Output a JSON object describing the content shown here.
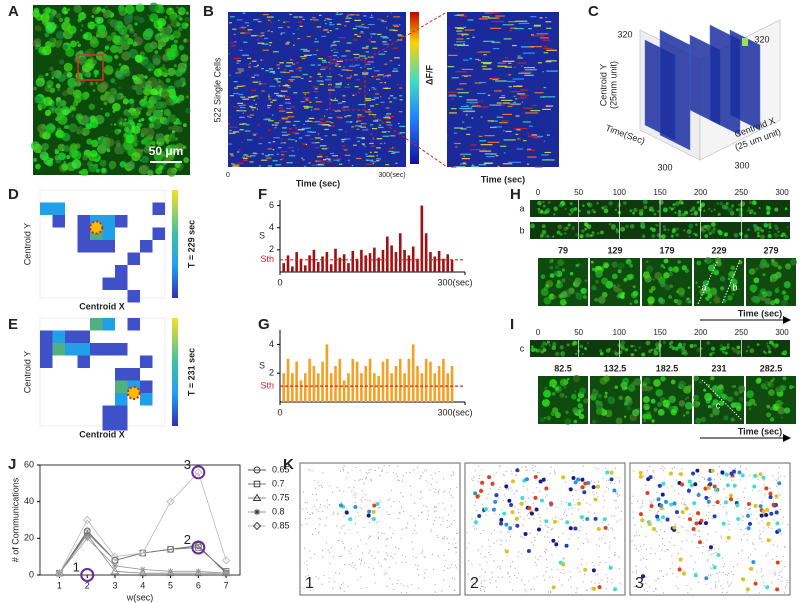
{
  "panel_labels": [
    "A",
    "B",
    "C",
    "D",
    "E",
    "F",
    "G",
    "H",
    "I",
    "J",
    "K"
  ],
  "A": {
    "scale_bar": "50 μm"
  },
  "B": {
    "y_label": "522 Single Cells",
    "x_start": "0",
    "x_end": "300(sec)",
    "x_label": "Time (sec)",
    "colorbar_label": "ΔF/F",
    "zoom_x_label": "Time (sec)"
  },
  "C": {
    "y_label": [
      "Centroid Y",
      "(25mm unit)"
    ],
    "y_max": "320",
    "x_max": "320",
    "time_label": "Time(Sec)",
    "time_max": "300",
    "x_label": [
      "Centroid X",
      "(25 um unit)"
    ],
    "x_end": "300"
  },
  "D": {
    "y_label": "Centroid Y",
    "x_label": "Centroid X",
    "time_label": "T = 229 sec"
  },
  "E": {
    "y_label": "Centroid Y",
    "x_label": "Centroid X",
    "time_label": "T = 231 sec"
  },
  "H": {
    "ticks": [
      0,
      50,
      100,
      150,
      200,
      250,
      300
    ],
    "rows": [
      "a",
      "b"
    ],
    "frames": [
      79,
      129,
      179,
      229,
      279
    ],
    "lines": [
      "a",
      "b"
    ],
    "time_label": "Time (sec)"
  },
  "I": {
    "ticks": [
      0,
      50,
      100,
      150,
      200,
      250,
      300
    ],
    "rows": [
      "c"
    ],
    "frames": [
      82.5,
      132.5,
      182.5,
      231,
      282.5
    ],
    "lines": [
      "c"
    ],
    "time_label": "Time (sec)"
  },
  "K": {
    "subpanels": [
      "1",
      "2",
      "3"
    ]
  },
  "chart_data": [
    {
      "type": "bar",
      "y_label": "S",
      "color": "#a01010",
      "x": [
        6,
        13,
        20,
        27,
        34,
        41,
        48,
        55,
        62,
        69,
        76,
        83,
        90,
        97,
        104,
        111,
        118,
        125,
        132,
        139,
        146,
        153,
        160,
        167,
        174,
        181,
        188,
        195,
        202,
        209,
        216,
        223,
        230,
        237,
        244,
        251,
        258,
        265,
        272,
        279
      ],
      "values": [
        0.8,
        1.5,
        0.5,
        1.8,
        1.2,
        0.6,
        1.5,
        2.0,
        0.9,
        1.4,
        1.8,
        0.7,
        2.1,
        1.3,
        1.6,
        0.8,
        1.9,
        1.2,
        2.0,
        1.5,
        1.7,
        2.2,
        1.3,
        2.0,
        3.2,
        2.4,
        1.8,
        3.5,
        2.0,
        1.5,
        2.3,
        1.2,
        6.0,
        3.5,
        1.8,
        1.4,
        1.9,
        1.2,
        1.6,
        1.1
      ],
      "xlim": [
        0,
        300
      ],
      "xticks": [
        0,
        {
          "value": 300,
          "label": "300(sec)"
        }
      ],
      "ylim": [
        0,
        6.5
      ],
      "yticks": [
        2,
        4,
        6
      ],
      "threshold": 1.1,
      "threshold_label": "Sth",
      "threshold_color": "#e02020"
    },
    {
      "type": "bar",
      "y_label": "S",
      "color": "#f5a020",
      "x": [
        6,
        13,
        20,
        27,
        34,
        41,
        48,
        55,
        62,
        69,
        76,
        83,
        90,
        97,
        104,
        111,
        118,
        125,
        132,
        139,
        146,
        153,
        160,
        167,
        174,
        181,
        188,
        195,
        202,
        209,
        216,
        223,
        230,
        237,
        244,
        251,
        258,
        265,
        272,
        279
      ],
      "values": [
        2.0,
        3.0,
        2.0,
        2.8,
        1.5,
        2.0,
        3.0,
        2.5,
        2.0,
        2.8,
        4.0,
        2.0,
        2.5,
        3.0,
        1.5,
        2.0,
        3.0,
        2.8,
        2.0,
        2.5,
        3.0,
        2.0,
        1.8,
        2.8,
        3.0,
        2.0,
        2.5,
        3.0,
        2.0,
        3.0,
        4.0,
        2.5,
        2.0,
        3.0,
        2.8,
        2.0,
        2.5,
        3.0,
        2.0,
        2.5
      ],
      "xlim": [
        0,
        300
      ],
      "xticks": [
        0,
        {
          "value": 300,
          "label": "300(sec)"
        }
      ],
      "ylim": [
        0,
        5
      ],
      "yticks": [
        2,
        4
      ],
      "threshold": 1.1,
      "threshold_label": "Sth",
      "threshold_color": "#e02020"
    },
    {
      "type": "line",
      "x_label": "w(sec)",
      "y_label": "# of Communications",
      "x": [
        1,
        2,
        3,
        4,
        5,
        6,
        7
      ],
      "series": [
        {
          "name": "0.65",
          "color": "#555555",
          "marker": "circle",
          "values": [
            1,
            24,
            8,
            12,
            14,
            16,
            1
          ]
        },
        {
          "name": "0.7",
          "color": "#777777",
          "marker": "square",
          "values": [
            1,
            23,
            8,
            12,
            14,
            15,
            2
          ]
        },
        {
          "name": "0.75",
          "color": "#888888",
          "marker": "triangle",
          "values": [
            1,
            22,
            2,
            1,
            1,
            1,
            1
          ]
        },
        {
          "name": "0.8",
          "color": "#999999",
          "marker": "star",
          "values": [
            1,
            20,
            5,
            3,
            2,
            2,
            1
          ]
        },
        {
          "name": "0.85",
          "color": "#bbbbbb",
          "marker": "diamond",
          "values": [
            1,
            30,
            10,
            12,
            40,
            56,
            8
          ]
        }
      ],
      "xlim": [
        0.3,
        7.5
      ],
      "xticks": [
        1,
        2,
        3,
        4,
        5,
        6,
        7
      ],
      "ylim": [
        0,
        60
      ],
      "yticks": [
        0,
        20,
        40,
        60
      ],
      "annotations": [
        {
          "text": "1",
          "x": 2,
          "y": 0
        },
        {
          "text": "2",
          "x": 6,
          "y": 15
        },
        {
          "text": "3",
          "x": 6,
          "y": 56
        }
      ],
      "annotation_color": "#6a2a9a"
    }
  ]
}
